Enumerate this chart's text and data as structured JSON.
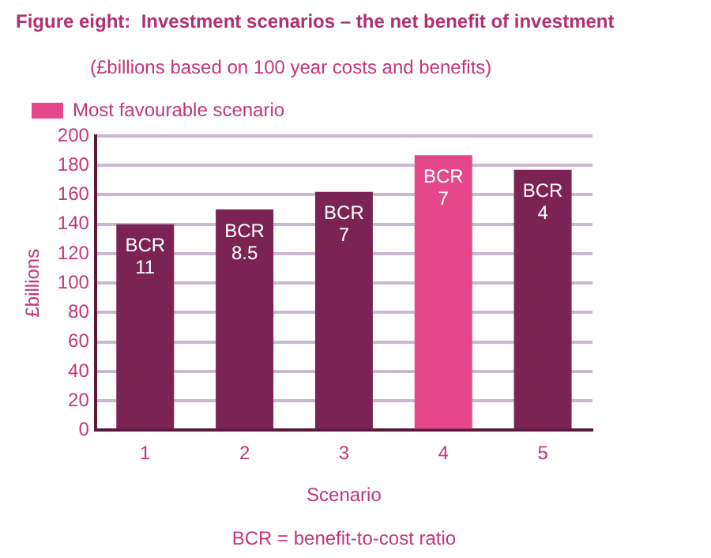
{
  "chart_data": {
    "type": "bar",
    "title": "Figure eight:  Investment scenarios – the net benefit of investment",
    "subtitle": "(£billions based on 100 year costs and benefits)",
    "xlabel": "Scenario",
    "ylabel": "£billions",
    "categories": [
      "1",
      "2",
      "3",
      "4",
      "5"
    ],
    "series": [
      {
        "color": "#7b2352",
        "values": [
          140,
          150,
          162,
          null,
          177
        ]
      },
      {
        "name": "Most favourable scenario",
        "color": "#e5488a",
        "values": [
          null,
          null,
          null,
          187,
          null
        ]
      }
    ],
    "ylim": [
      0,
      200
    ],
    "yticks": [
      0,
      20,
      40,
      60,
      80,
      100,
      120,
      140,
      160,
      180,
      200
    ],
    "grid": "y",
    "legend": "top left",
    "annotations": [
      {
        "text": "BCR 11",
        "x": "1",
        "y": 140
      },
      {
        "text": "BCR 8.5",
        "x": "2",
        "y": 150
      },
      {
        "text": "BCR 7",
        "x": "3",
        "y": 162
      },
      {
        "text": "BCR 7",
        "x": "4",
        "y": 187
      },
      {
        "text": "BCR 4",
        "x": "5",
        "y": 177
      },
      "BCR = benefit-to-cost ratio"
    ]
  }
}
